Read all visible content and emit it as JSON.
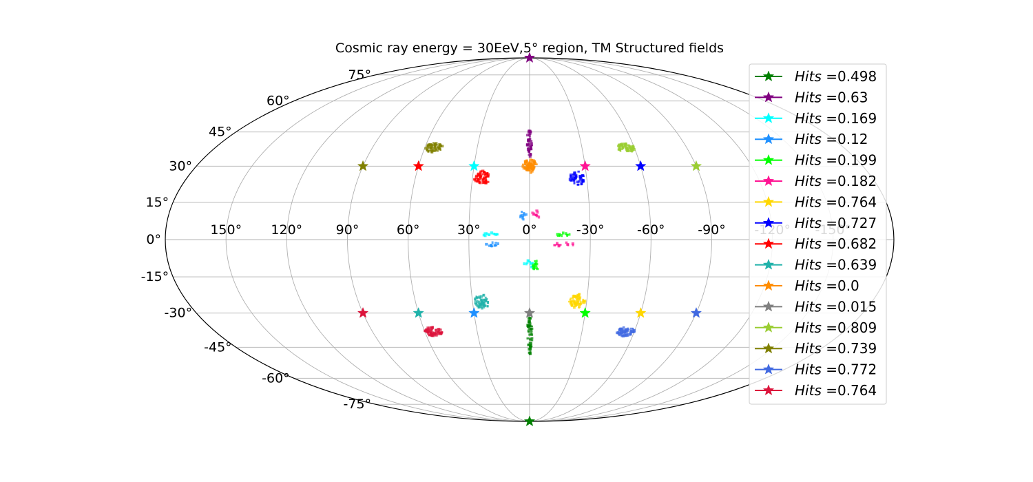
{
  "chart_data": {
    "type": "scatter",
    "projection": "mollweide",
    "title": "Cosmic ray energy = 30EeV,5$^{\\circ}$ region, TM Structured fields",
    "title_display": "Cosmic ray energy = 30EeV,5° region, TM Structured fields",
    "grid": true,
    "legend_placement": "right",
    "longitude_ticks": [
      "150°",
      "120°",
      "90°",
      "60°",
      "30°",
      "0°",
      "-30°",
      "-60°",
      "-90°",
      "-120°",
      "-150°"
    ],
    "longitude_tick_values": [
      150,
      120,
      90,
      60,
      30,
      0,
      -30,
      -60,
      -90,
      -120,
      -150
    ],
    "latitude_ticks": [
      "75°",
      "60°",
      "45°",
      "30°",
      "15°",
      "0°",
      "-15°",
      "-30°",
      "-45°",
      "-60°",
      "-75°"
    ],
    "latitude_tick_values": [
      75,
      60,
      45,
      30,
      15,
      0,
      -15,
      -30,
      -45,
      -60,
      -75
    ],
    "legend_prefix": "Hits",
    "series": [
      {
        "label": "=0.498",
        "color": "#008000",
        "source": {
          "lon": 0,
          "lat": -90
        },
        "cluster": {
          "lon": 0,
          "lat": -40,
          "dlon": 1.5,
          "dlat": 9,
          "n": 45
        }
      },
      {
        "label": "=0.63",
        "color": "#800080",
        "source": {
          "lon": 0,
          "lat": 90
        },
        "cluster": {
          "lon": 0,
          "lat": 40,
          "dlon": 1.5,
          "dlat": 6,
          "n": 40
        }
      },
      {
        "label": "=0.169",
        "color": "#00FFFF",
        "source": {
          "lon": 30,
          "lat": 30
        },
        "cluster": {
          "lon": 0,
          "lat": -10,
          "dlon": 3,
          "dlat": 2,
          "n": 14
        }
      },
      {
        "label": "=0.12",
        "color": "#1E90FF",
        "source": {
          "lon": 30,
          "lat": -30
        },
        "cluster": {
          "lon": 3,
          "lat": 10,
          "dlon": 2,
          "dlat": 2,
          "n": 10
        }
      },
      {
        "label": "=0.199",
        "color": "#00FF00",
        "source": {
          "lon": -30,
          "lat": -30
        },
        "cluster": {
          "lon": -3,
          "lat": -10,
          "dlon": 3,
          "dlat": 2,
          "n": 12
        }
      },
      {
        "label": "=0.182",
        "color": "#FF1493",
        "source": {
          "lon": -30,
          "lat": 30
        },
        "cluster": {
          "lon": -3,
          "lat": 10,
          "dlon": 2,
          "dlat": 2,
          "n": 10
        }
      },
      {
        "label": "=0.764",
        "color": "#FFD700",
        "source": {
          "lon": -60,
          "lat": -30
        },
        "cluster": {
          "lon": -25,
          "lat": -25,
          "dlon": 4,
          "dlat": 3,
          "n": 60
        }
      },
      {
        "label": "=0.727",
        "color": "#0000FF",
        "source": {
          "lon": -60,
          "lat": 30
        },
        "cluster": {
          "lon": -25,
          "lat": 25,
          "dlon": 4,
          "dlat": 3,
          "n": 45
        }
      },
      {
        "label": "=0.682",
        "color": "#FF0000",
        "source": {
          "lon": 60,
          "lat": 30
        },
        "cluster": {
          "lon": 25,
          "lat": 25,
          "dlon": 4,
          "dlat": 3,
          "n": 55
        }
      },
      {
        "label": "=0.639",
        "color": "#20B2AA",
        "source": {
          "lon": 60,
          "lat": -30
        },
        "cluster": {
          "lon": 25,
          "lat": -25,
          "dlon": 4,
          "dlat": 3,
          "n": 55
        }
      },
      {
        "label": "=0.0",
        "color": "#FF8C00",
        "source": {
          "lon": 0,
          "lat": 30
        },
        "cluster": {
          "lon": 0,
          "lat": 30,
          "dlon": 4,
          "dlat": 3,
          "n": 55
        }
      },
      {
        "label": "=0.015",
        "color": "#808080",
        "source": {
          "lon": 0,
          "lat": -30
        },
        "cluster": {
          "lon": 0,
          "lat": -30,
          "dlon": 1,
          "dlat": 1,
          "n": 3
        }
      },
      {
        "label": "=0.809",
        "color": "#9ACD32",
        "source": {
          "lon": -90,
          "lat": 30
        },
        "cluster": {
          "lon": -55,
          "lat": 38,
          "dlon": 5,
          "dlat": 2,
          "n": 60
        }
      },
      {
        "label": "=0.739",
        "color": "#808000",
        "source": {
          "lon": 90,
          "lat": 30
        },
        "cluster": {
          "lon": 55,
          "lat": 38,
          "dlon": 5,
          "dlat": 2,
          "n": 60
        }
      },
      {
        "label": "=0.772",
        "color": "#4169E1",
        "source": {
          "lon": -90,
          "lat": -30
        },
        "cluster": {
          "lon": -55,
          "lat": -38,
          "dlon": 5,
          "dlat": 2,
          "n": 60
        }
      },
      {
        "label": "=0.764",
        "color": "#DC143C",
        "source": {
          "lon": 90,
          "lat": -30
        },
        "cluster": {
          "lon": 55,
          "lat": -38,
          "dlon": 5,
          "dlat": 2,
          "n": 60
        }
      }
    ],
    "extra_clusters": [
      {
        "color": "#00FFFF",
        "lon": 19,
        "lat": 2,
        "dlon": 4,
        "dlat": 0.8,
        "n": 12
      },
      {
        "color": "#1E90FF",
        "lon": 18,
        "lat": -2,
        "dlon": 4,
        "dlat": 0.8,
        "n": 12
      },
      {
        "color": "#00FF00",
        "lon": -17,
        "lat": 2,
        "dlon": 4,
        "dlat": 0.8,
        "n": 10
      },
      {
        "color": "#FF1493",
        "lon": -17,
        "lat": -2,
        "dlon": 5,
        "dlat": 0.8,
        "n": 12
      }
    ]
  }
}
